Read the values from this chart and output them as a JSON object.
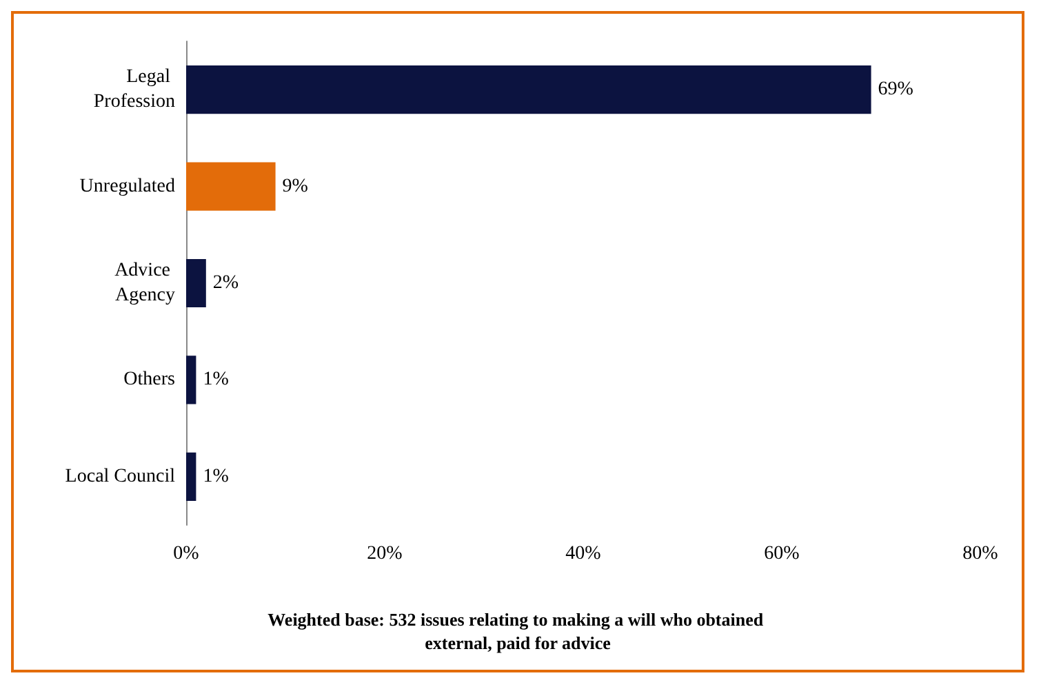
{
  "chart_data": {
    "type": "bar",
    "orientation": "horizontal",
    "categories": [
      "Legal Profession",
      "Unregulated",
      "Advice Agency",
      "Others",
      "Local Council"
    ],
    "values": [
      69,
      9,
      2,
      1,
      1
    ],
    "colors": [
      "#0c1340",
      "#e36c0a",
      "#0c1340",
      "#0c1340",
      "#0c1340"
    ],
    "xlim": [
      0,
      80
    ],
    "xticks": [
      {
        "value": 0,
        "label": "0%"
      },
      {
        "value": 20,
        "label": "20%"
      },
      {
        "value": 40,
        "label": "40%"
      },
      {
        "value": 60,
        "label": "60%"
      },
      {
        "value": 80,
        "label": "80%"
      }
    ],
    "value_labels": [
      "69%",
      "9%",
      "2%",
      "1%",
      "1%"
    ],
    "grid": false,
    "annotations": [
      "Weighted base: 532 issues relating to making a will who obtained external, paid for advice"
    ]
  }
}
